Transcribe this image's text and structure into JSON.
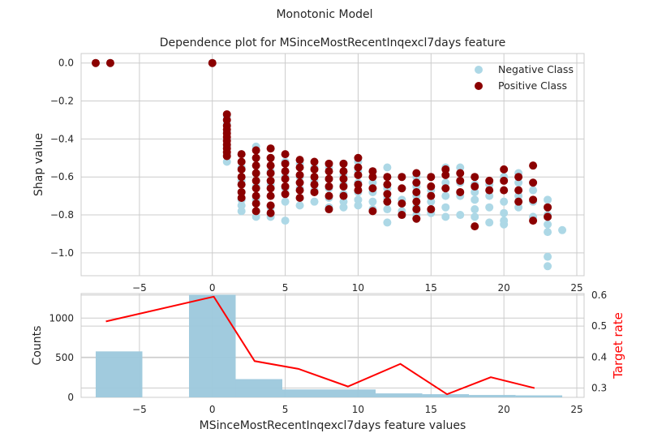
{
  "figure_title": "Monotonic Model",
  "chart_data": [
    {
      "type": "scatter",
      "title": "Dependence plot for MSinceMostRecentInqexcl7days feature",
      "xlabel": "",
      "ylabel": "Shap value",
      "xlim": [
        -9,
        25.5
      ],
      "ylim": [
        -1.12,
        0.05
      ],
      "xticks": [
        -5,
        0,
        5,
        10,
        15,
        20,
        25
      ],
      "xtick_labels": [
        "−5",
        "0",
        "5",
        "10",
        "15",
        "20",
        "25"
      ],
      "yticks": [
        0.0,
        -0.2,
        -0.4,
        -0.6,
        -0.8,
        -1.0
      ],
      "ytick_labels": [
        "0.0",
        "−0.2",
        "−0.4",
        "−0.6",
        "−0.8",
        "−1.0"
      ],
      "grid": true,
      "legend": "top-right",
      "series": [
        {
          "name": "Negative Class",
          "color": "#add8e6",
          "points": [
            [
              -8,
              0.0
            ],
            [
              -7,
              0.0
            ],
            [
              0,
              0.0
            ],
            [
              1,
              -0.28
            ],
            [
              1,
              -0.32
            ],
            [
              1,
              -0.36
            ],
            [
              1,
              -0.4
            ],
            [
              1,
              -0.44
            ],
            [
              1,
              -0.48
            ],
            [
              1,
              -0.52
            ],
            [
              2,
              -0.48
            ],
            [
              2,
              -0.55
            ],
            [
              2,
              -0.62
            ],
            [
              2,
              -0.68
            ],
            [
              2,
              -0.72
            ],
            [
              2,
              -0.75
            ],
            [
              2,
              -0.78
            ],
            [
              3,
              -0.44
            ],
            [
              3,
              -0.5
            ],
            [
              3,
              -0.58
            ],
            [
              3,
              -0.65
            ],
            [
              3,
              -0.72
            ],
            [
              3,
              -0.78
            ],
            [
              3,
              -0.81
            ],
            [
              4,
              -0.5
            ],
            [
              4,
              -0.57
            ],
            [
              4,
              -0.64
            ],
            [
              4,
              -0.7
            ],
            [
              4,
              -0.76
            ],
            [
              4,
              -0.81
            ],
            [
              5,
              -0.52
            ],
            [
              5,
              -0.6
            ],
            [
              5,
              -0.66
            ],
            [
              5,
              -0.73
            ],
            [
              5,
              -0.83
            ],
            [
              6,
              -0.53
            ],
            [
              6,
              -0.6
            ],
            [
              6,
              -0.66
            ],
            [
              6,
              -0.71
            ],
            [
              6,
              -0.75
            ],
            [
              7,
              -0.55
            ],
            [
              7,
              -0.62
            ],
            [
              7,
              -0.67
            ],
            [
              7,
              -0.73
            ],
            [
              8,
              -0.55
            ],
            [
              8,
              -0.61
            ],
            [
              8,
              -0.66
            ],
            [
              8,
              -0.71
            ],
            [
              8,
              -0.76
            ],
            [
              9,
              -0.53
            ],
            [
              9,
              -0.59
            ],
            [
              9,
              -0.64
            ],
            [
              9,
              -0.69
            ],
            [
              9,
              -0.73
            ],
            [
              9,
              -0.76
            ],
            [
              10,
              -0.52
            ],
            [
              10,
              -0.57
            ],
            [
              10,
              -0.63
            ],
            [
              10,
              -0.68
            ],
            [
              10,
              -0.72
            ],
            [
              10,
              -0.75
            ],
            [
              11,
              -0.57
            ],
            [
              11,
              -0.63
            ],
            [
              11,
              -0.68
            ],
            [
              11,
              -0.73
            ],
            [
              11,
              -0.77
            ],
            [
              12,
              -0.55
            ],
            [
              12,
              -0.6
            ],
            [
              12,
              -0.66
            ],
            [
              12,
              -0.71
            ],
            [
              12,
              -0.77
            ],
            [
              12,
              -0.84
            ],
            [
              13,
              -0.6
            ],
            [
              13,
              -0.66
            ],
            [
              13,
              -0.72
            ],
            [
              13,
              -0.78
            ],
            [
              13,
              -0.8
            ],
            [
              14,
              -0.6
            ],
            [
              14,
              -0.65
            ],
            [
              14,
              -0.7
            ],
            [
              14,
              -0.76
            ],
            [
              14,
              -0.8
            ],
            [
              15,
              -0.6
            ],
            [
              15,
              -0.67
            ],
            [
              15,
              -0.73
            ],
            [
              15,
              -0.79
            ],
            [
              16,
              -0.55
            ],
            [
              16,
              -0.63
            ],
            [
              16,
              -0.7
            ],
            [
              16,
              -0.76
            ],
            [
              16,
              -0.81
            ],
            [
              17,
              -0.55
            ],
            [
              17,
              -0.63
            ],
            [
              17,
              -0.7
            ],
            [
              17,
              -0.8
            ],
            [
              18,
              -0.64
            ],
            [
              18,
              -0.68
            ],
            [
              18,
              -0.72
            ],
            [
              18,
              -0.77
            ],
            [
              18,
              -0.81
            ],
            [
              19,
              -0.64
            ],
            [
              19,
              -0.7
            ],
            [
              19,
              -0.76
            ],
            [
              19,
              -0.84
            ],
            [
              20,
              -0.6
            ],
            [
              20,
              -0.67
            ],
            [
              20,
              -0.73
            ],
            [
              20,
              -0.79
            ],
            [
              20,
              -0.83
            ],
            [
              20,
              -0.85
            ],
            [
              21,
              -0.58
            ],
            [
              21,
              -0.63
            ],
            [
              21,
              -0.7
            ],
            [
              21,
              -0.76
            ],
            [
              22,
              -0.63
            ],
            [
              22,
              -0.67
            ],
            [
              22,
              -0.73
            ],
            [
              22,
              -0.81
            ],
            [
              23,
              -0.72
            ],
            [
              23,
              -0.76
            ],
            [
              23,
              -0.8
            ],
            [
              23,
              -0.85
            ],
            [
              23,
              -0.89
            ],
            [
              23,
              -1.02
            ],
            [
              23,
              -1.07
            ],
            [
              24,
              -0.88
            ]
          ]
        },
        {
          "name": "Positive Class",
          "color": "#8b0000",
          "points": [
            [
              -8,
              0.0
            ],
            [
              -7,
              0.0
            ],
            [
              0,
              0.0
            ],
            [
              1,
              -0.27
            ],
            [
              1,
              -0.3
            ],
            [
              1,
              -0.33
            ],
            [
              1,
              -0.35
            ],
            [
              1,
              -0.37
            ],
            [
              1,
              -0.39
            ],
            [
              1,
              -0.41
            ],
            [
              1,
              -0.43
            ],
            [
              1,
              -0.45
            ],
            [
              1,
              -0.47
            ],
            [
              1,
              -0.49
            ],
            [
              2,
              -0.48
            ],
            [
              2,
              -0.52
            ],
            [
              2,
              -0.56
            ],
            [
              2,
              -0.6
            ],
            [
              2,
              -0.64
            ],
            [
              2,
              -0.68
            ],
            [
              2,
              -0.71
            ],
            [
              3,
              -0.46
            ],
            [
              3,
              -0.5
            ],
            [
              3,
              -0.54
            ],
            [
              3,
              -0.58
            ],
            [
              3,
              -0.62
            ],
            [
              3,
              -0.66
            ],
            [
              3,
              -0.7
            ],
            [
              3,
              -0.74
            ],
            [
              3,
              -0.78
            ],
            [
              4,
              -0.45
            ],
            [
              4,
              -0.5
            ],
            [
              4,
              -0.54
            ],
            [
              4,
              -0.58
            ],
            [
              4,
              -0.62
            ],
            [
              4,
              -0.66
            ],
            [
              4,
              -0.7
            ],
            [
              4,
              -0.75
            ],
            [
              4,
              -0.79
            ],
            [
              5,
              -0.48
            ],
            [
              5,
              -0.53
            ],
            [
              5,
              -0.57
            ],
            [
              5,
              -0.61
            ],
            [
              5,
              -0.65
            ],
            [
              5,
              -0.69
            ],
            [
              6,
              -0.51
            ],
            [
              6,
              -0.55
            ],
            [
              6,
              -0.59
            ],
            [
              6,
              -0.63
            ],
            [
              6,
              -0.67
            ],
            [
              6,
              -0.71
            ],
            [
              7,
              -0.52
            ],
            [
              7,
              -0.56
            ],
            [
              7,
              -0.6
            ],
            [
              7,
              -0.64
            ],
            [
              7,
              -0.68
            ],
            [
              8,
              -0.53
            ],
            [
              8,
              -0.57
            ],
            [
              8,
              -0.61
            ],
            [
              8,
              -0.65
            ],
            [
              8,
              -0.7
            ],
            [
              8,
              -0.77
            ],
            [
              9,
              -0.53
            ],
            [
              9,
              -0.57
            ],
            [
              9,
              -0.61
            ],
            [
              9,
              -0.65
            ],
            [
              9,
              -0.7
            ],
            [
              10,
              -0.5
            ],
            [
              10,
              -0.55
            ],
            [
              10,
              -0.59
            ],
            [
              10,
              -0.64
            ],
            [
              10,
              -0.67
            ],
            [
              11,
              -0.57
            ],
            [
              11,
              -0.6
            ],
            [
              11,
              -0.66
            ],
            [
              11,
              -0.78
            ],
            [
              12,
              -0.6
            ],
            [
              12,
              -0.64
            ],
            [
              12,
              -0.69
            ],
            [
              12,
              -0.73
            ],
            [
              13,
              -0.6
            ],
            [
              13,
              -0.66
            ],
            [
              13,
              -0.74
            ],
            [
              13,
              -0.8
            ],
            [
              14,
              -0.58
            ],
            [
              14,
              -0.63
            ],
            [
              14,
              -0.68
            ],
            [
              14,
              -0.73
            ],
            [
              14,
              -0.77
            ],
            [
              14,
              -0.82
            ],
            [
              15,
              -0.6
            ],
            [
              15,
              -0.65
            ],
            [
              15,
              -0.7
            ],
            [
              15,
              -0.77
            ],
            [
              16,
              -0.56
            ],
            [
              16,
              -0.59
            ],
            [
              16,
              -0.66
            ],
            [
              17,
              -0.58
            ],
            [
              17,
              -0.62
            ],
            [
              17,
              -0.68
            ],
            [
              18,
              -0.6
            ],
            [
              18,
              -0.65
            ],
            [
              18,
              -0.86
            ],
            [
              19,
              -0.62
            ],
            [
              19,
              -0.67
            ],
            [
              20,
              -0.56
            ],
            [
              20,
              -0.62
            ],
            [
              20,
              -0.67
            ],
            [
              21,
              -0.6
            ],
            [
              21,
              -0.67
            ],
            [
              21,
              -0.73
            ],
            [
              22,
              -0.54
            ],
            [
              22,
              -0.63
            ],
            [
              22,
              -0.72
            ],
            [
              22,
              -0.83
            ],
            [
              23,
              -0.76
            ],
            [
              23,
              -0.81
            ]
          ]
        }
      ]
    },
    {
      "type": "bar",
      "title": "",
      "xlabel": "MSinceMostRecentInqexcl7days feature values",
      "ylabel": "Counts",
      "y2label": "Target rate",
      "y2label_color": "#ff0000",
      "xlim": [
        -9,
        25.5
      ],
      "ylim": [
        0,
        1310
      ],
      "y2lim": [
        0.27,
        0.605
      ],
      "xticks": [
        -5,
        0,
        5,
        10,
        15,
        20,
        25
      ],
      "xtick_labels": [
        "−5",
        "0",
        "5",
        "10",
        "15",
        "20",
        "25"
      ],
      "yticks": [
        0,
        500,
        1000
      ],
      "ytick_labels": [
        "0",
        "500",
        "1000"
      ],
      "y2ticks": [
        0.3,
        0.4,
        0.5,
        0.6
      ],
      "y2tick_labels": [
        "0.3",
        "0.4",
        "0.5",
        "0.6"
      ],
      "grid": true,
      "bar_color": "#9cc8dc",
      "bars": [
        {
          "x0": -8,
          "x1": -4.8,
          "value": 580
        },
        {
          "x0": -1.6,
          "x1": 1.6,
          "value": 1295
        },
        {
          "x0": 1.6,
          "x1": 4.8,
          "value": 230
        },
        {
          "x0": 4.8,
          "x1": 8,
          "value": 100
        },
        {
          "x0": 8,
          "x1": 11.2,
          "value": 100
        },
        {
          "x0": 11.2,
          "x1": 14.4,
          "value": 50
        },
        {
          "x0": 14.4,
          "x1": 17.6,
          "value": 40
        },
        {
          "x0": 17.6,
          "x1": 20.8,
          "value": 30
        },
        {
          "x0": 20.8,
          "x1": 24,
          "value": 25
        }
      ],
      "target_rate": {
        "color": "#ff0000",
        "x": [
          -7.3,
          0.1,
          2.9,
          5.9,
          9.3,
          12.9,
          16.1,
          19.1,
          22.1
        ],
        "y": [
          0.515,
          0.595,
          0.387,
          0.362,
          0.305,
          0.378,
          0.28,
          0.335,
          0.3
        ]
      }
    }
  ]
}
